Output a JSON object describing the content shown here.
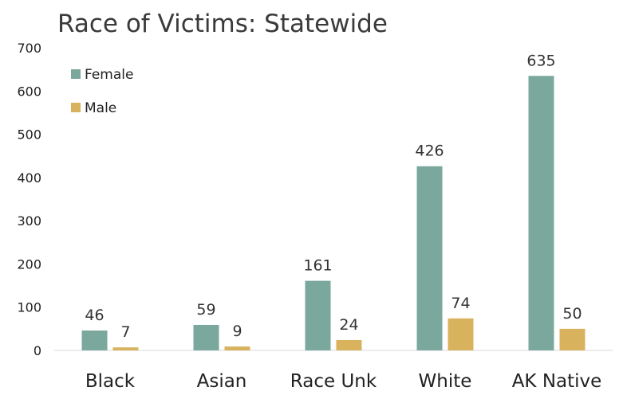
{
  "chart_data": {
    "type": "bar",
    "title": "Race of Victims: Statewide",
    "xlabel": "",
    "ylabel": "",
    "categories": [
      "Black",
      "Asian",
      "Race Unk",
      "White",
      "AK Native"
    ],
    "series": [
      {
        "name": "Female",
        "values": [
          46,
          59,
          161,
          426,
          635
        ],
        "color": "#7aa89c"
      },
      {
        "name": "Male",
        "values": [
          7,
          9,
          24,
          74,
          50
        ],
        "color": "#d9b25e"
      }
    ],
    "ylim": [
      0,
      700
    ],
    "yticks": [
      "0",
      "100",
      "200",
      "300",
      "400",
      "500",
      "600",
      "700"
    ],
    "data_labels": [
      [
        "46",
        "59",
        "161",
        "426",
        "635"
      ],
      [
        "7",
        "9",
        "24",
        "74",
        "50"
      ]
    ],
    "grid": false,
    "legend": "top-left"
  }
}
